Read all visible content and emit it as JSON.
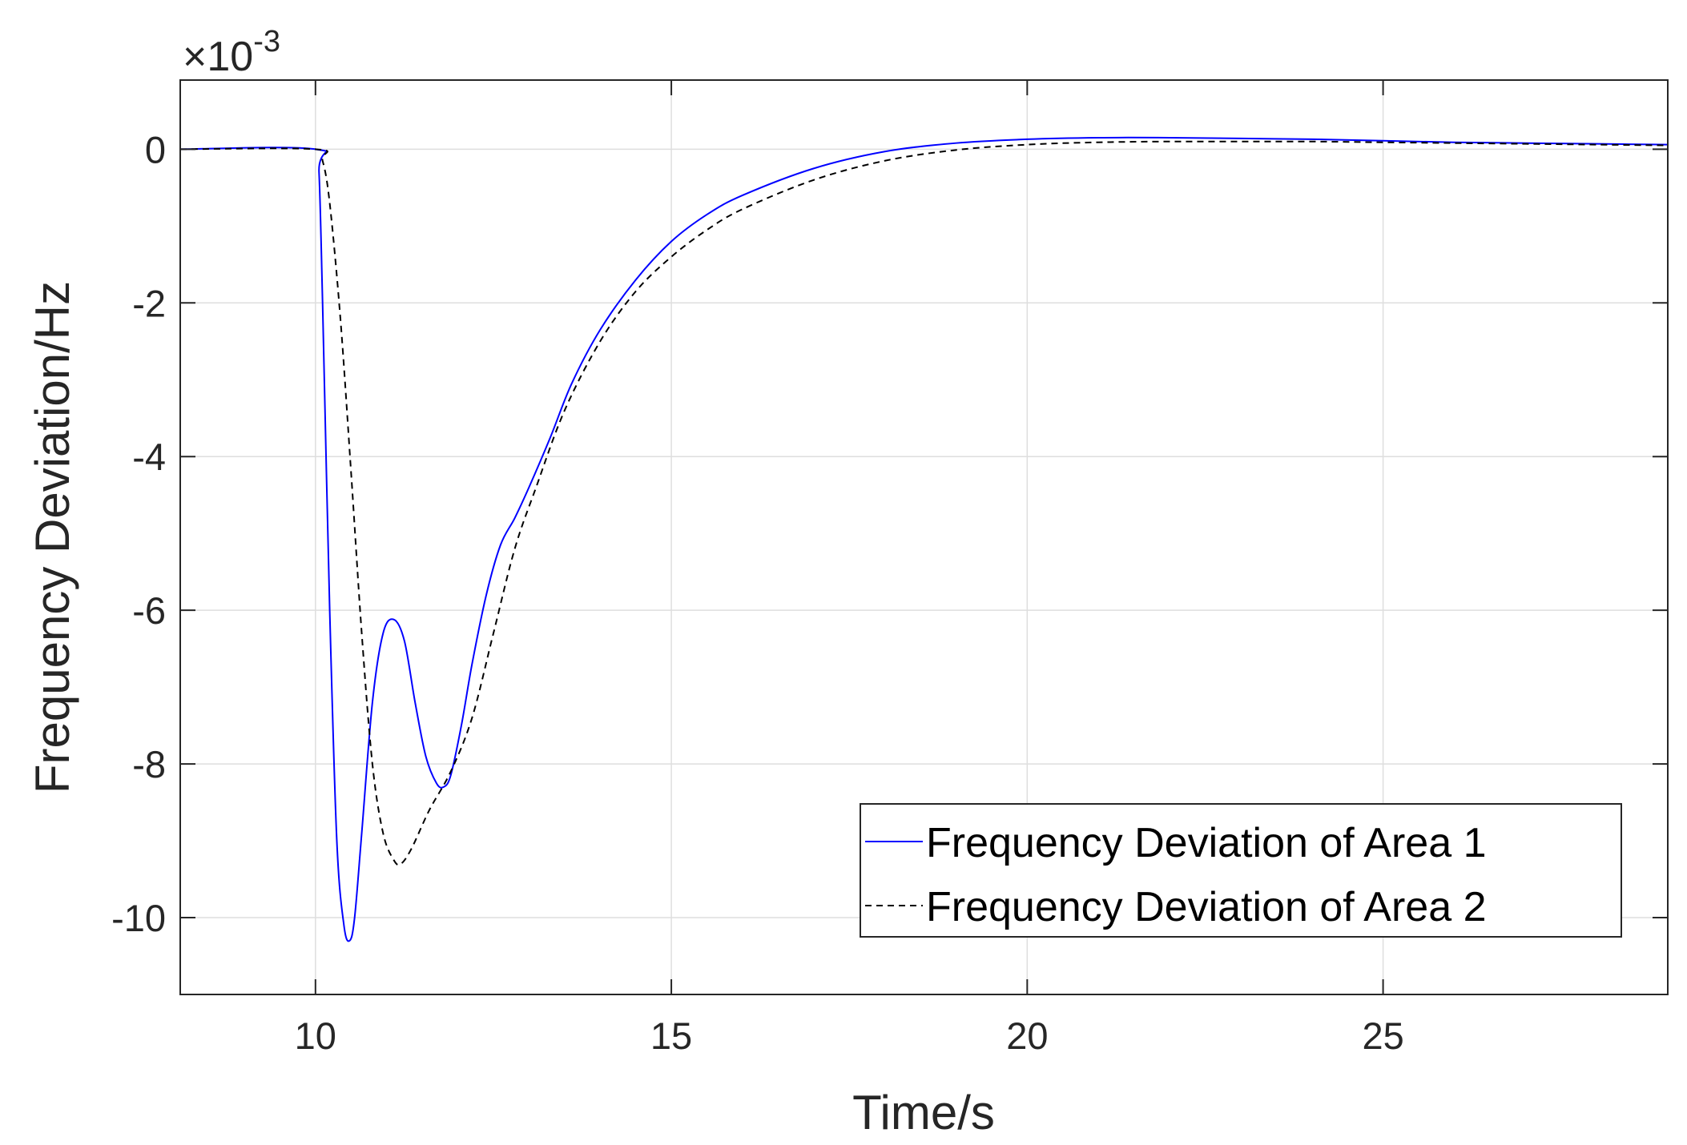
{
  "chart_data": {
    "type": "line",
    "title": "",
    "xlabel": "Time/s",
    "ylabel": "Frequency Deviation/Hz",
    "y_multiplier": {
      "base": "×10",
      "exponent": "-3"
    },
    "xlim": [
      8.1,
      29
    ],
    "ylim": [
      -11,
      0.9
    ],
    "x_ticks": [
      10,
      15,
      20,
      25
    ],
    "x_tick_labels": [
      "10",
      "15",
      "20",
      "25"
    ],
    "y_ticks": [
      0,
      -2,
      -4,
      -6,
      -8,
      -10
    ],
    "y_tick_labels": [
      "0",
      "-2",
      "-4",
      "-6",
      "-8",
      "-10"
    ],
    "grid": true,
    "legend_position": "bottom-right",
    "series": [
      {
        "name": "Frequency Deviation of Area 1",
        "color": "#0000ff",
        "dash": "solid",
        "points": [
          [
            8.1,
            0
          ],
          [
            10,
            0
          ],
          [
            10.05,
            -0.3
          ],
          [
            10.1,
            -2.0
          ],
          [
            10.2,
            -6.0
          ],
          [
            10.3,
            -9.0
          ],
          [
            10.4,
            -10.1
          ],
          [
            10.48,
            -10.3
          ],
          [
            10.55,
            -10.0
          ],
          [
            10.65,
            -8.9
          ],
          [
            10.8,
            -7.2
          ],
          [
            10.95,
            -6.3
          ],
          [
            11.1,
            -6.12
          ],
          [
            11.25,
            -6.4
          ],
          [
            11.4,
            -7.2
          ],
          [
            11.55,
            -7.9
          ],
          [
            11.7,
            -8.25
          ],
          [
            11.8,
            -8.3
          ],
          [
            11.9,
            -8.15
          ],
          [
            12.05,
            -7.5
          ],
          [
            12.2,
            -6.7
          ],
          [
            12.4,
            -5.8
          ],
          [
            12.6,
            -5.15
          ],
          [
            12.8,
            -4.8
          ],
          [
            13.0,
            -4.4
          ],
          [
            13.3,
            -3.75
          ],
          [
            13.6,
            -3.05
          ],
          [
            14.0,
            -2.35
          ],
          [
            14.5,
            -1.7
          ],
          [
            15.0,
            -1.2
          ],
          [
            15.5,
            -0.85
          ],
          [
            16.0,
            -0.6
          ],
          [
            17.0,
            -0.25
          ],
          [
            18.0,
            -0.03
          ],
          [
            19.0,
            0.08
          ],
          [
            20.0,
            0.13
          ],
          [
            21.0,
            0.15
          ],
          [
            22.0,
            0.15
          ],
          [
            23.0,
            0.14
          ],
          [
            24.0,
            0.13
          ],
          [
            25.0,
            0.11
          ],
          [
            26.0,
            0.09
          ],
          [
            27.0,
            0.08
          ],
          [
            28.0,
            0.07
          ],
          [
            29.0,
            0.06
          ]
        ]
      },
      {
        "name": "Frequency Deviation of Area 2",
        "color": "#000000",
        "dash": "dashed",
        "points": [
          [
            8.1,
            0
          ],
          [
            10,
            0
          ],
          [
            10.1,
            -0.15
          ],
          [
            10.2,
            -0.7
          ],
          [
            10.35,
            -2.2
          ],
          [
            10.5,
            -4.2
          ],
          [
            10.65,
            -6.3
          ],
          [
            10.8,
            -8.0
          ],
          [
            10.95,
            -8.9
          ],
          [
            11.1,
            -9.25
          ],
          [
            11.2,
            -9.3
          ],
          [
            11.35,
            -9.1
          ],
          [
            11.6,
            -8.6
          ],
          [
            11.9,
            -8.1
          ],
          [
            12.2,
            -7.4
          ],
          [
            12.5,
            -6.3
          ],
          [
            12.8,
            -5.2
          ],
          [
            13.1,
            -4.4
          ],
          [
            13.5,
            -3.4
          ],
          [
            14.0,
            -2.5
          ],
          [
            14.5,
            -1.85
          ],
          [
            15.0,
            -1.4
          ],
          [
            15.5,
            -1.05
          ],
          [
            16.0,
            -0.78
          ],
          [
            17.0,
            -0.4
          ],
          [
            18.0,
            -0.15
          ],
          [
            19.0,
            -0.01
          ],
          [
            20.0,
            0.06
          ],
          [
            21.0,
            0.09
          ],
          [
            22.0,
            0.1
          ],
          [
            23.0,
            0.1
          ],
          [
            24.0,
            0.1
          ],
          [
            25.0,
            0.09
          ],
          [
            26.0,
            0.08
          ],
          [
            27.0,
            0.07
          ],
          [
            28.0,
            0.06
          ],
          [
            29.0,
            0.05
          ]
        ]
      }
    ]
  }
}
